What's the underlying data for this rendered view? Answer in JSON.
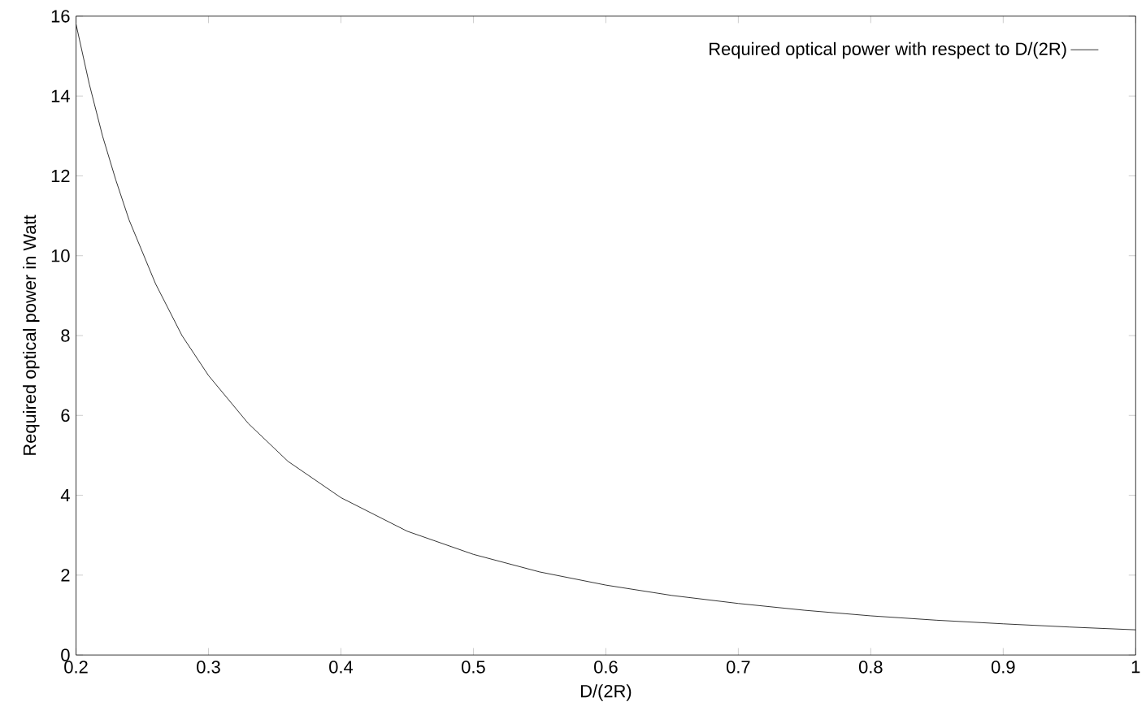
{
  "chart_data": {
    "type": "line",
    "xlabel": "D/(2R)",
    "ylabel": "Required optical power in Watt",
    "xlim": [
      0.2,
      1
    ],
    "ylim": [
      0,
      16
    ],
    "xticks": [
      0.2,
      0.3,
      0.4,
      0.5,
      0.6,
      0.7,
      0.8,
      0.9,
      1
    ],
    "yticks": [
      0,
      2,
      4,
      6,
      8,
      10,
      12,
      14,
      16
    ],
    "legend": "top right",
    "grid": false,
    "marker": "none",
    "line_style": "solid",
    "series": [
      {
        "name": "Required optical power with respect to D/(2R)",
        "color": "#000000",
        "x": [
          0.2,
          0.21,
          0.22,
          0.23,
          0.24,
          0.25,
          0.26,
          0.28,
          0.3,
          0.33,
          0.36,
          0.4,
          0.45,
          0.5,
          0.55,
          0.6,
          0.65,
          0.7,
          0.75,
          0.8,
          0.85,
          0.9,
          0.95,
          1.0
        ],
        "values": [
          15.8,
          14.3,
          13.0,
          11.9,
          10.9,
          10.1,
          9.3,
          8.0,
          7.0,
          5.8,
          4.85,
          3.94,
          3.1,
          2.52,
          2.08,
          1.75,
          1.49,
          1.29,
          1.12,
          0.98,
          0.87,
          0.78,
          0.7,
          0.63
        ]
      }
    ]
  }
}
